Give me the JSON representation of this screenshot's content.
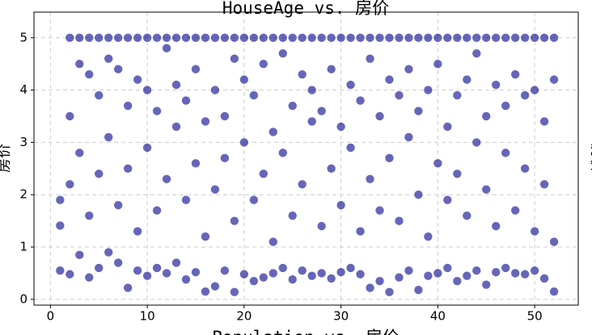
{
  "chart_data": {
    "type": "scatter",
    "title": "HouseAge vs. 房价",
    "ylabel": "房价",
    "annotations": [
      "Population vs. 房价",
      "房价"
    ],
    "xlim": [
      -1.7,
      54.5
    ],
    "ylim": [
      -0.11,
      5.49
    ],
    "xticks": [
      0,
      10,
      20,
      30,
      40,
      50
    ],
    "yticks": [
      0,
      1,
      2,
      3,
      4,
      5
    ],
    "grid": true,
    "series": [
      {
        "color": "#00008b",
        "x": [
          1,
          1,
          1,
          2,
          2,
          2,
          2,
          3,
          3,
          3,
          3,
          4,
          4,
          4,
          4,
          5,
          5,
          5,
          5,
          6,
          6,
          6,
          6,
          7,
          7,
          7,
          7,
          8,
          8,
          8,
          8,
          9,
          9,
          9,
          9,
          10,
          10,
          10,
          10,
          11,
          11,
          11,
          11,
          12,
          12,
          12,
          12,
          13,
          13,
          13,
          13,
          14,
          14,
          14,
          14,
          15,
          15,
          15,
          15,
          16,
          16,
          16,
          16,
          17,
          17,
          17,
          17,
          18,
          18,
          18,
          18,
          19,
          19,
          19,
          19,
          20,
          20,
          20,
          20,
          21,
          21,
          21,
          21,
          22,
          22,
          22,
          22,
          23,
          23,
          23,
          23,
          24,
          24,
          24,
          24,
          25,
          25,
          25,
          25,
          26,
          26,
          26,
          26,
          27,
          27,
          27,
          27,
          28,
          28,
          28,
          28,
          29,
          29,
          29,
          29,
          30,
          30,
          30,
          30,
          31,
          31,
          31,
          31,
          32,
          32,
          32,
          32,
          33,
          33,
          33,
          33,
          34,
          34,
          34,
          34,
          35,
          35,
          35,
          35,
          36,
          36,
          36,
          36,
          37,
          37,
          37,
          37,
          38,
          38,
          38,
          38,
          39,
          39,
          39,
          39,
          40,
          40,
          40,
          40,
          41,
          41,
          41,
          41,
          42,
          42,
          42,
          42,
          43,
          43,
          43,
          43,
          44,
          44,
          44,
          44,
          45,
          45,
          45,
          45,
          46,
          46,
          46,
          46,
          47,
          47,
          47,
          47,
          48,
          48,
          48,
          48,
          49,
          49,
          49,
          49,
          50,
          50,
          50,
          50,
          51,
          51,
          51,
          51,
          52,
          52,
          52,
          52
        ],
        "y": [
          1.9,
          1.41,
          0.55,
          5,
          0.48,
          2.2,
          3.5,
          5,
          0.85,
          2.8,
          4.5,
          5,
          0.42,
          1.6,
          4.3,
          5,
          0.6,
          2.4,
          3.9,
          5,
          0.9,
          3.1,
          4.6,
          5,
          0.7,
          1.8,
          4.4,
          5,
          0.22,
          2.5,
          3.7,
          5,
          0.55,
          1.3,
          4.2,
          5,
          0.45,
          2.9,
          4.0,
          5,
          0.6,
          1.7,
          3.6,
          5,
          0.5,
          2.3,
          4.8,
          5,
          0.7,
          3.3,
          4.1,
          5,
          0.38,
          1.9,
          3.8,
          5,
          0.52,
          2.6,
          4.4,
          5,
          0.15,
          1.2,
          3.4,
          5,
          0.25,
          2.1,
          4.0,
          5,
          0.55,
          2.7,
          3.5,
          5,
          0.14,
          1.5,
          4.6,
          5,
          0.48,
          3.0,
          4.2,
          5,
          0.35,
          1.9,
          3.9,
          5,
          0.42,
          2.4,
          4.5,
          5,
          0.5,
          1.1,
          3.2,
          5,
          0.6,
          2.8,
          4.7,
          5,
          0.38,
          1.6,
          3.7,
          5,
          0.55,
          2.2,
          4.3,
          5,
          0.45,
          3.4,
          4.0,
          5,
          0.5,
          1.4,
          3.6,
          5,
          0.4,
          2.5,
          4.4,
          5,
          0.52,
          1.8,
          3.3,
          5,
          0.6,
          2.9,
          4.1,
          5,
          0.48,
          1.3,
          3.8,
          5,
          0.22,
          2.3,
          4.6,
          5,
          0.35,
          1.7,
          3.5,
          5,
          0.14,
          2.7,
          4.2,
          5,
          0.42,
          1.5,
          3.9,
          5,
          0.55,
          3.1,
          4.4,
          5,
          0.18,
          2.0,
          3.6,
          5,
          0.45,
          1.2,
          4.0,
          5,
          0.5,
          2.6,
          4.5,
          5,
          0.6,
          1.9,
          3.3,
          5,
          0.35,
          2.4,
          3.9,
          5,
          0.45,
          1.6,
          4.2,
          5,
          0.55,
          3.0,
          4.7,
          5,
          0.28,
          2.1,
          3.5,
          5,
          0.52,
          1.4,
          4.1,
          5,
          0.6,
          2.8,
          3.7,
          5,
          0.5,
          1.7,
          4.3,
          5,
          0.48,
          2.5,
          3.9,
          5,
          0.55,
          1.3,
          4.0,
          5,
          0.4,
          2.2,
          3.4,
          5,
          0.15,
          1.1,
          4.2
        ]
      }
    ]
  }
}
